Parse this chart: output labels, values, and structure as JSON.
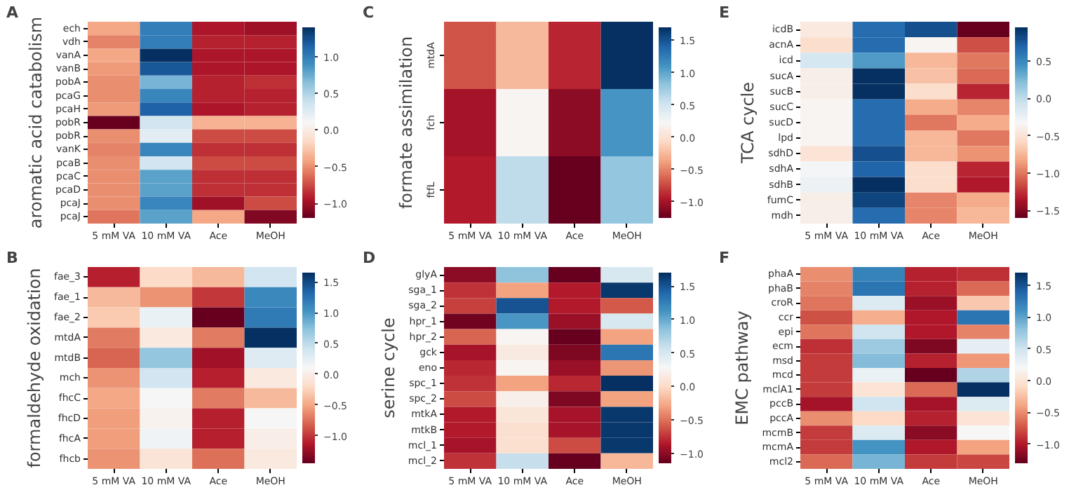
{
  "chart_data": [
    {
      "type": "heatmap",
      "title": "A",
      "ylabel": "aromatic acid catabolism",
      "categories": [
        "5 mM VA",
        "10 mM VA",
        "Ace",
        "MeOH"
      ],
      "y_categories": [
        "ech",
        "vdh",
        "vanA",
        "vanB",
        "pobA",
        "pcaG",
        "pcaH",
        "pobR",
        "pobR",
        "vanK",
        "pcaB",
        "pcaC",
        "pcaD",
        "pcaJ",
        "pcaJ"
      ],
      "cells": [
        [
          -0.4,
          1.0,
          -0.95,
          -1.0
        ],
        [
          -0.55,
          1.0,
          -0.9,
          -0.9
        ],
        [
          -0.4,
          1.4,
          -0.95,
          -0.95
        ],
        [
          -0.45,
          1.2,
          -0.95,
          -0.95
        ],
        [
          -0.5,
          0.7,
          -0.9,
          -0.85
        ],
        [
          -0.5,
          0.95,
          -0.9,
          -0.9
        ],
        [
          -0.45,
          1.15,
          -0.95,
          -0.9
        ],
        [
          -1.2,
          0.35,
          -0.35,
          -0.35
        ],
        [
          -0.5,
          0.25,
          -0.75,
          -0.75
        ],
        [
          -0.55,
          0.95,
          -0.85,
          -0.85
        ],
        [
          -0.5,
          0.35,
          -0.75,
          -0.75
        ],
        [
          -0.5,
          0.8,
          -0.85,
          -0.85
        ],
        [
          -0.5,
          0.8,
          -0.85,
          -0.85
        ],
        [
          -0.5,
          0.95,
          -1.0,
          -0.75
        ],
        [
          -0.6,
          0.8,
          -0.4,
          -1.1
        ]
      ],
      "clim": [
        -1.2,
        1.4
      ],
      "cticks": [
        {
          "value": -1.0,
          "label": "−1.0"
        },
        {
          "value": -0.5,
          "label": "−0.5"
        },
        {
          "value": 0.0,
          "label": "0.0"
        },
        {
          "value": 0.5,
          "label": "0.5"
        },
        {
          "value": 1.0,
          "label": "1.0"
        }
      ]
    },
    {
      "type": "heatmap",
      "title": "B",
      "ylabel": "formaldehyde oxidation",
      "categories": [
        "5 mM VA",
        "10 mM VA",
        "Ace",
        "MeOH"
      ],
      "y_categories": [
        "fae_3",
        "fae_1",
        "fae_2",
        "mtdA",
        "mtdB",
        "mch",
        "fhcC",
        "fhcD",
        "fhcA",
        "fhcb"
      ],
      "cells": [
        [
          -1.1,
          -0.2,
          -0.4,
          0.4
        ],
        [
          -0.4,
          -0.6,
          -1.0,
          1.1
        ],
        [
          -0.3,
          0.2,
          -1.45,
          1.2
        ],
        [
          -0.7,
          -0.05,
          -0.7,
          1.65
        ],
        [
          -0.8,
          0.7,
          -1.2,
          0.3
        ],
        [
          -0.6,
          0.4,
          -1.1,
          -0.05
        ],
        [
          -0.5,
          0.1,
          -0.7,
          -0.4
        ],
        [
          -0.55,
          0.05,
          -1.1,
          0.1
        ],
        [
          -0.55,
          0.15,
          -1.1,
          0.0
        ],
        [
          -0.6,
          -0.1,
          -0.75,
          -0.05
        ]
      ],
      "clim": [
        -1.45,
        1.65
      ],
      "cticks": [
        {
          "value": -1.0,
          "label": "−1.0"
        },
        {
          "value": -0.5,
          "label": "−0.5"
        },
        {
          "value": 0.0,
          "label": "0.0"
        },
        {
          "value": 0.5,
          "label": "0.5"
        },
        {
          "value": 1.0,
          "label": "1.0"
        },
        {
          "value": 1.5,
          "label": "1.5"
        }
      ]
    },
    {
      "type": "heatmap",
      "title": "C",
      "ylabel": "formate assimilation",
      "categories": [
        "5 mM VA",
        "10 mM VA",
        "Ace",
        "MeOH"
      ],
      "y_categories": [
        "mtdA",
        "fch",
        "ftfL"
      ],
      "cells": [
        [
          -0.7,
          -0.25,
          -0.9,
          1.7
        ],
        [
          -1.0,
          0.2,
          -1.1,
          1.1
        ],
        [
          -0.95,
          0.6,
          -1.25,
          0.8
        ]
      ],
      "clim": [
        -1.25,
        1.7
      ],
      "cticks": [
        {
          "value": -1.0,
          "label": "−1.0"
        },
        {
          "value": -0.5,
          "label": "−0.5"
        },
        {
          "value": 0.0,
          "label": "0.0"
        },
        {
          "value": 0.5,
          "label": "0.5"
        },
        {
          "value": 1.0,
          "label": "1.0"
        },
        {
          "value": 1.5,
          "label": "1.5"
        }
      ]
    },
    {
      "type": "heatmap",
      "title": "D",
      "ylabel": "serine cycle",
      "categories": [
        "5 mM VA",
        "10 mM VA",
        "Ace",
        "MeOH"
      ],
      "y_categories": [
        "glyA",
        "sga_1",
        "sga_2",
        "hpr_1",
        "hpr_2",
        "gck",
        "eno",
        "spc_1",
        "spc_2",
        "mtkA",
        "mtkB",
        "mcl_1",
        "mcl_2"
      ],
      "cells": [
        [
          -1.0,
          0.85,
          -1.15,
          0.5
        ],
        [
          -0.75,
          -0.3,
          -0.85,
          1.65
        ],
        [
          -0.7,
          1.5,
          -0.85,
          -0.6
        ],
        [
          -1.1,
          1.1,
          -0.95,
          0.5
        ],
        [
          -0.55,
          0.25,
          -1.15,
          -0.3
        ],
        [
          -0.9,
          0.15,
          -1.05,
          1.3
        ],
        [
          -0.8,
          0.25,
          -0.95,
          -0.35
        ],
        [
          -0.75,
          -0.3,
          -0.8,
          1.7
        ],
        [
          -0.65,
          0.2,
          -1.05,
          -0.3
        ],
        [
          -0.85,
          0.1,
          -0.9,
          1.65
        ],
        [
          -0.85,
          0.05,
          -0.9,
          1.65
        ],
        [
          -0.9,
          0.05,
          -0.65,
          1.65
        ],
        [
          -0.75,
          0.6,
          -1.15,
          -0.2
        ]
      ],
      "clim": [
        -1.15,
        1.7
      ],
      "cticks": [
        {
          "value": -1.0,
          "label": "−1.0"
        },
        {
          "value": -0.5,
          "label": "−0.5"
        },
        {
          "value": 0.0,
          "label": "0.0"
        },
        {
          "value": 0.5,
          "label": "0.5"
        },
        {
          "value": 1.0,
          "label": "1.0"
        },
        {
          "value": 1.5,
          "label": "1.5"
        }
      ]
    },
    {
      "type": "heatmap",
      "title": "E",
      "ylabel": "TCA cycle",
      "categories": [
        "5 mM VA",
        "10 mM VA",
        "Ace",
        "MeOH"
      ],
      "y_categories": [
        "icdB",
        "acnA",
        "icd",
        "sucA",
        "sucB",
        "sucC",
        "sucD",
        "lpd",
        "sdhD",
        "sdhA",
        "sdhB",
        "fumC",
        "mdh"
      ],
      "cells": [
        [
          -0.45,
          0.65,
          0.8,
          -1.6
        ],
        [
          -0.55,
          0.65,
          -0.35,
          -1.15
        ],
        [
          -0.1,
          0.4,
          -0.75,
          -1.0
        ],
        [
          -0.4,
          0.95,
          -0.7,
          -1.05
        ],
        [
          -0.4,
          0.95,
          -0.55,
          -1.3
        ],
        [
          -0.35,
          0.65,
          -0.8,
          -0.95
        ],
        [
          -0.35,
          0.65,
          -1.0,
          -0.8
        ],
        [
          -0.35,
          0.65,
          -0.75,
          -1.0
        ],
        [
          -0.5,
          0.8,
          -0.75,
          -0.9
        ],
        [
          -0.3,
          0.7,
          -0.55,
          -1.3
        ],
        [
          -0.25,
          0.95,
          -0.55,
          -1.35
        ],
        [
          -0.4,
          0.85,
          -0.95,
          -0.8
        ],
        [
          -0.4,
          0.65,
          -0.95,
          -0.75
        ]
      ],
      "clim": [
        -1.6,
        0.95
      ],
      "cticks": [
        {
          "value": -1.5,
          "label": "−1.5"
        },
        {
          "value": -1.0,
          "label": "−1.0"
        },
        {
          "value": -0.5,
          "label": "−0.5"
        },
        {
          "value": 0.0,
          "label": "0.0"
        },
        {
          "value": 0.5,
          "label": "0.5"
        }
      ]
    },
    {
      "type": "heatmap",
      "title": "F",
      "ylabel": "EMC pathway",
      "categories": [
        "5 mM VA",
        "10 mM VA",
        "Ace",
        "MeOH"
      ],
      "y_categories": [
        "phaA",
        "phaB",
        "croR",
        "ccr",
        "epi",
        "ecm",
        "msd",
        "mcd",
        "mclA1",
        "pccB",
        "pccA",
        "mcmB",
        "mcmA",
        "mcl2"
      ],
      "cells": [
        [
          -0.5,
          1.2,
          -0.95,
          -0.9
        ],
        [
          -0.55,
          1.3,
          -0.95,
          -0.65
        ],
        [
          -0.6,
          0.4,
          -1.1,
          -0.2
        ],
        [
          -0.75,
          -0.35,
          -1.0,
          1.3
        ],
        [
          -0.6,
          0.5,
          -1.0,
          -0.55
        ],
        [
          -0.9,
          0.75,
          -1.2,
          0.35
        ],
        [
          -0.85,
          0.85,
          -0.95,
          -0.45
        ],
        [
          -0.85,
          0.3,
          -1.3,
          0.65
        ],
        [
          -0.85,
          0.0,
          -0.65,
          1.7
        ],
        [
          -1.05,
          0.5,
          -1.05,
          0.4
        ],
        [
          -0.5,
          -0.1,
          -0.95,
          0.0
        ],
        [
          -0.85,
          0.4,
          -1.15,
          0.2
        ],
        [
          -0.85,
          1.1,
          -1.0,
          -0.4
        ],
        [
          -0.65,
          0.9,
          -0.85,
          -0.8
        ]
      ],
      "clim": [
        -1.3,
        1.7
      ],
      "cticks": [
        {
          "value": -1.0,
          "label": "−1.0"
        },
        {
          "value": -0.5,
          "label": "−0.5"
        },
        {
          "value": 0.0,
          "label": "0.0"
        },
        {
          "value": 0.5,
          "label": "0.5"
        },
        {
          "value": 1.0,
          "label": "1.0"
        },
        {
          "value": 1.5,
          "label": "1.5"
        }
      ]
    }
  ]
}
